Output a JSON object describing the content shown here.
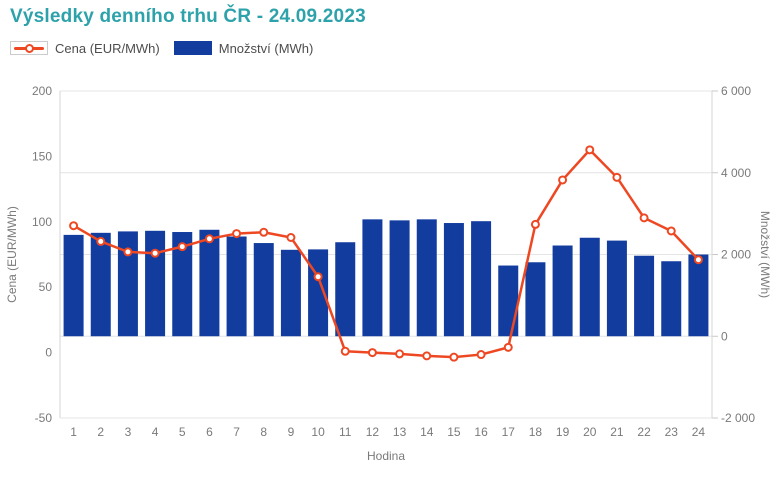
{
  "page": {
    "title": "Výsledky denního trhu ČR - 24.09.2023"
  },
  "legend": {
    "items": [
      {
        "label": "Cena (EUR/MWh)",
        "type": "line"
      },
      {
        "label": "Množství (MWh)",
        "type": "bar"
      }
    ]
  },
  "colors": {
    "title": "#2da2ab",
    "price_line": "#ee4823",
    "volume_bar": "#123c9e",
    "grid": "#e4e4e4",
    "axis_border": "#d6d6d6",
    "tick_mark": "#c9c9c9",
    "tick_text": "#7a7a7a",
    "legend_text": "#4d4d4d",
    "marker_fill": "#ffffff"
  },
  "chart_data": {
    "type": "bar+line combo, dual y-axes",
    "title": "Výsledky denního trhu ČR - 24.09.2023",
    "xlabel": "Hodina",
    "categories": [
      1,
      2,
      3,
      4,
      5,
      6,
      7,
      8,
      9,
      10,
      11,
      12,
      13,
      14,
      15,
      16,
      17,
      18,
      19,
      20,
      21,
      22,
      23,
      24
    ],
    "series": [
      {
        "name": "Cena (EUR/MWh)",
        "type": "line",
        "axis": "left",
        "color": "#ee4823",
        "values": [
          97,
          85,
          77,
          76,
          81,
          87,
          91,
          92,
          88,
          58,
          1,
          0,
          -1,
          -2.5,
          -3.5,
          -1.5,
          4,
          98,
          132,
          155,
          134,
          103,
          93,
          71
        ]
      },
      {
        "name": "Množství (MWh)",
        "type": "bar",
        "axis": "right",
        "color": "#123c9e",
        "values": [
          2480,
          2530,
          2565,
          2580,
          2550,
          2605,
          2440,
          2280,
          2115,
          2125,
          2300,
          2860,
          2835,
          2860,
          2770,
          2815,
          1730,
          1810,
          2220,
          2410,
          2340,
          1970,
          1835,
          2000
        ]
      }
    ],
    "left_axis": {
      "label": "Cena (EUR/MWh)",
      "min": -50,
      "max": 200,
      "ticks": [
        200,
        150,
        100,
        50,
        0,
        -50
      ]
    },
    "right_axis": {
      "label": "Množství (MWh)",
      "min": -2000,
      "max": 6000,
      "ticks": [
        6000,
        4000,
        2000,
        0,
        -2000
      ],
      "tick_labels": [
        "6 000",
        "4 000",
        "2 000",
        "0",
        "-2 000"
      ]
    },
    "grid": "horizontal gridlines aligned to right-axis ticks",
    "legend_position": "top-left"
  }
}
